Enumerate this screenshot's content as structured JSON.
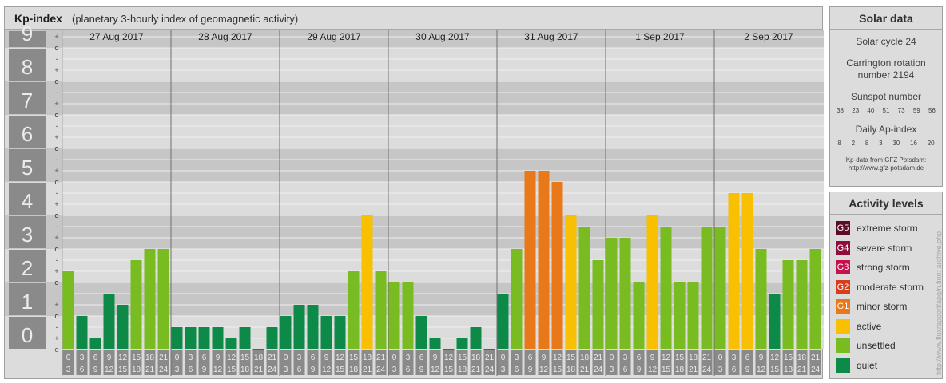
{
  "header": {
    "title": "Kp-index",
    "subtitle": "(planetary 3-hourly index of geomagnetic activity)"
  },
  "chart_data": {
    "type": "bar",
    "title": "Kp-index",
    "subtitle": "(planetary 3-hourly index of geomagnetic activity)",
    "ylim": [
      0,
      9
    ],
    "y_ticks": [
      "0",
      "1",
      "2",
      "3",
      "4",
      "5",
      "6",
      "7",
      "8",
      "9"
    ],
    "y_minor_ticks": [
      "o",
      "+",
      "-",
      "o"
    ],
    "days": [
      "27 Aug 2017",
      "28 Aug 2017",
      "29 Aug 2017",
      "30 Aug 2017",
      "31 Aug 2017",
      "1 Sep 2017",
      "2 Sep 2017"
    ],
    "interval_labels": [
      [
        "0",
        "3"
      ],
      [
        "3",
        "6"
      ],
      [
        "6",
        "9"
      ],
      [
        "9",
        "12"
      ],
      [
        "12",
        "15"
      ],
      [
        "15",
        "18"
      ],
      [
        "18",
        "21"
      ],
      [
        "21",
        "24"
      ]
    ],
    "values": [
      [
        2.333,
        1.0,
        0.333,
        1.667,
        1.333,
        2.667,
        3.0,
        3.0
      ],
      [
        0.667,
        0.667,
        0.667,
        0.667,
        0.333,
        0.667,
        0.0,
        0.667
      ],
      [
        1.0,
        1.333,
        1.333,
        1.0,
        1.0,
        2.333,
        4.0,
        2.333
      ],
      [
        2.0,
        2.0,
        1.0,
        0.333,
        0.0,
        0.333,
        0.667,
        0.0
      ],
      [
        1.667,
        3.0,
        5.333,
        5.333,
        5.0,
        4.0,
        3.667,
        2.667
      ],
      [
        3.333,
        3.333,
        2.0,
        4.0,
        3.667,
        2.0,
        2.0,
        3.667
      ],
      [
        3.667,
        4.667,
        4.667,
        3.0,
        1.667,
        2.667,
        2.667,
        3.0
      ]
    ],
    "grid": true,
    "legend_position": "right"
  },
  "colors": {
    "quiet": "#0e8a48",
    "unsettled": "#78bc22",
    "active": "#f8c000",
    "minor_storm": "#e87818",
    "moderate_storm": "#d83c1c",
    "strong_storm": "#c8104c",
    "severe_storm": "#900c3c",
    "extreme_storm": "#5c0c24",
    "panel_bg": "#dcdcdc",
    "band_dark": "#c6c6c6",
    "axis_box": "#8a8a8a",
    "axis_text": "#ececec"
  },
  "solar": {
    "title": "Solar data",
    "cycle": "Solar cycle 24",
    "carrington_1": "Carrington rotation",
    "carrington_2": "number 2194",
    "sunspot_title": "Sunspot number",
    "sunspot_values": [
      "38",
      "23",
      "40",
      "51",
      "73",
      "59",
      "56"
    ],
    "ap_title": "Daily Ap-index",
    "ap_values": [
      "8",
      "2",
      "8",
      "3",
      "30",
      "16",
      "20"
    ],
    "credit_1": "Kp-data from GFZ Potsdam:",
    "credit_2": "http://www.gfz-potsdam.de"
  },
  "activity": {
    "title": "Activity levels",
    "items": [
      {
        "code": "G5",
        "label": "extreme storm",
        "color": "#5c0c24"
      },
      {
        "code": "G4",
        "label": "severe storm",
        "color": "#900c3c"
      },
      {
        "code": "G3",
        "label": "strong storm",
        "color": "#c8104c"
      },
      {
        "code": "G2",
        "label": "moderate storm",
        "color": "#d83c1c"
      },
      {
        "code": "G1",
        "label": "minor storm",
        "color": "#e87818"
      },
      {
        "code": "",
        "label": "active",
        "color": "#f8c000"
      },
      {
        "code": "",
        "label": "unsettled",
        "color": "#78bc22"
      },
      {
        "code": "",
        "label": "quiet",
        "color": "#0e8a48"
      }
    ]
  },
  "watermark": "http://www.fluxrapport/apg/n.tion: archive.php"
}
